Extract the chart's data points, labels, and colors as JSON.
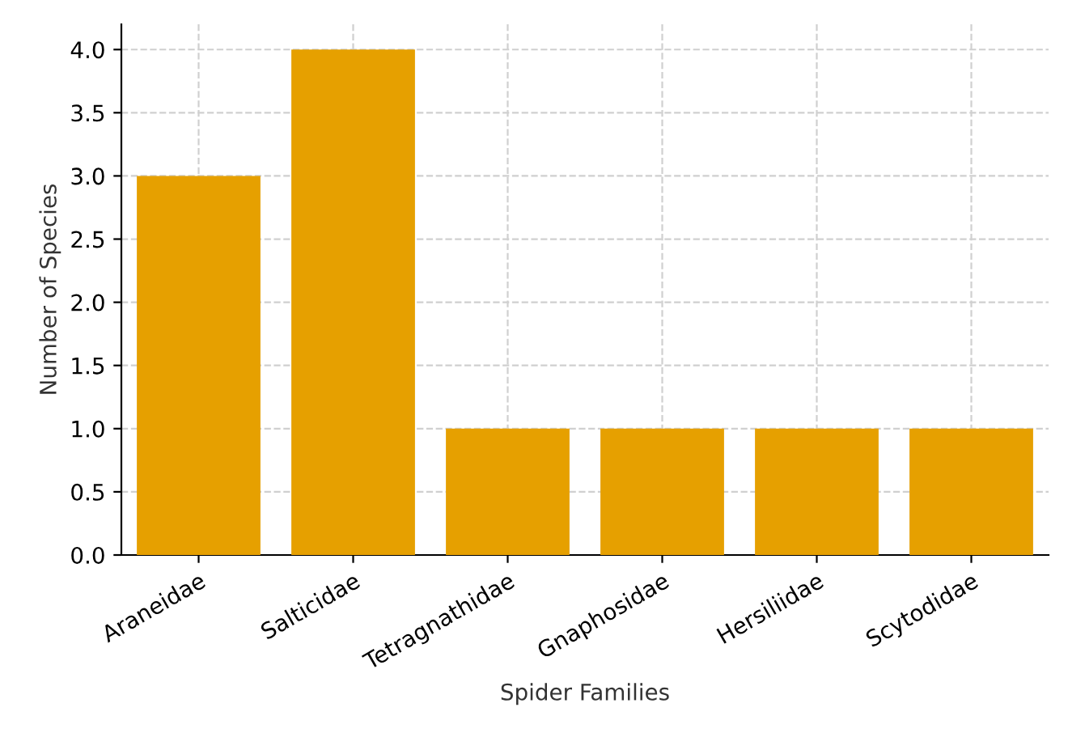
{
  "chart_data": {
    "type": "bar",
    "xlabel": "Spider Families",
    "ylabel": "Number of Species",
    "categories": [
      "Araneidae",
      "Salticidae",
      "Tetragnathidae",
      "Gnaphosidae",
      "Hersiliidae",
      "Scytodidae"
    ],
    "values": [
      3,
      4,
      1,
      1,
      1,
      1
    ],
    "color": "#e6a000",
    "ylim": [
      0,
      4.2
    ],
    "yticks": [
      {
        "value": 0,
        "label": "0.0"
      },
      {
        "value": 0.5,
        "label": "0.5"
      },
      {
        "value": 1,
        "label": "1.0"
      },
      {
        "value": 1.5,
        "label": "1.5"
      },
      {
        "value": 2,
        "label": "2.0"
      },
      {
        "value": 2.5,
        "label": "2.5"
      },
      {
        "value": 3,
        "label": "3.0"
      },
      {
        "value": 3.5,
        "label": "3.5"
      },
      {
        "value": 4,
        "label": "4.0"
      }
    ],
    "grid": true
  }
}
